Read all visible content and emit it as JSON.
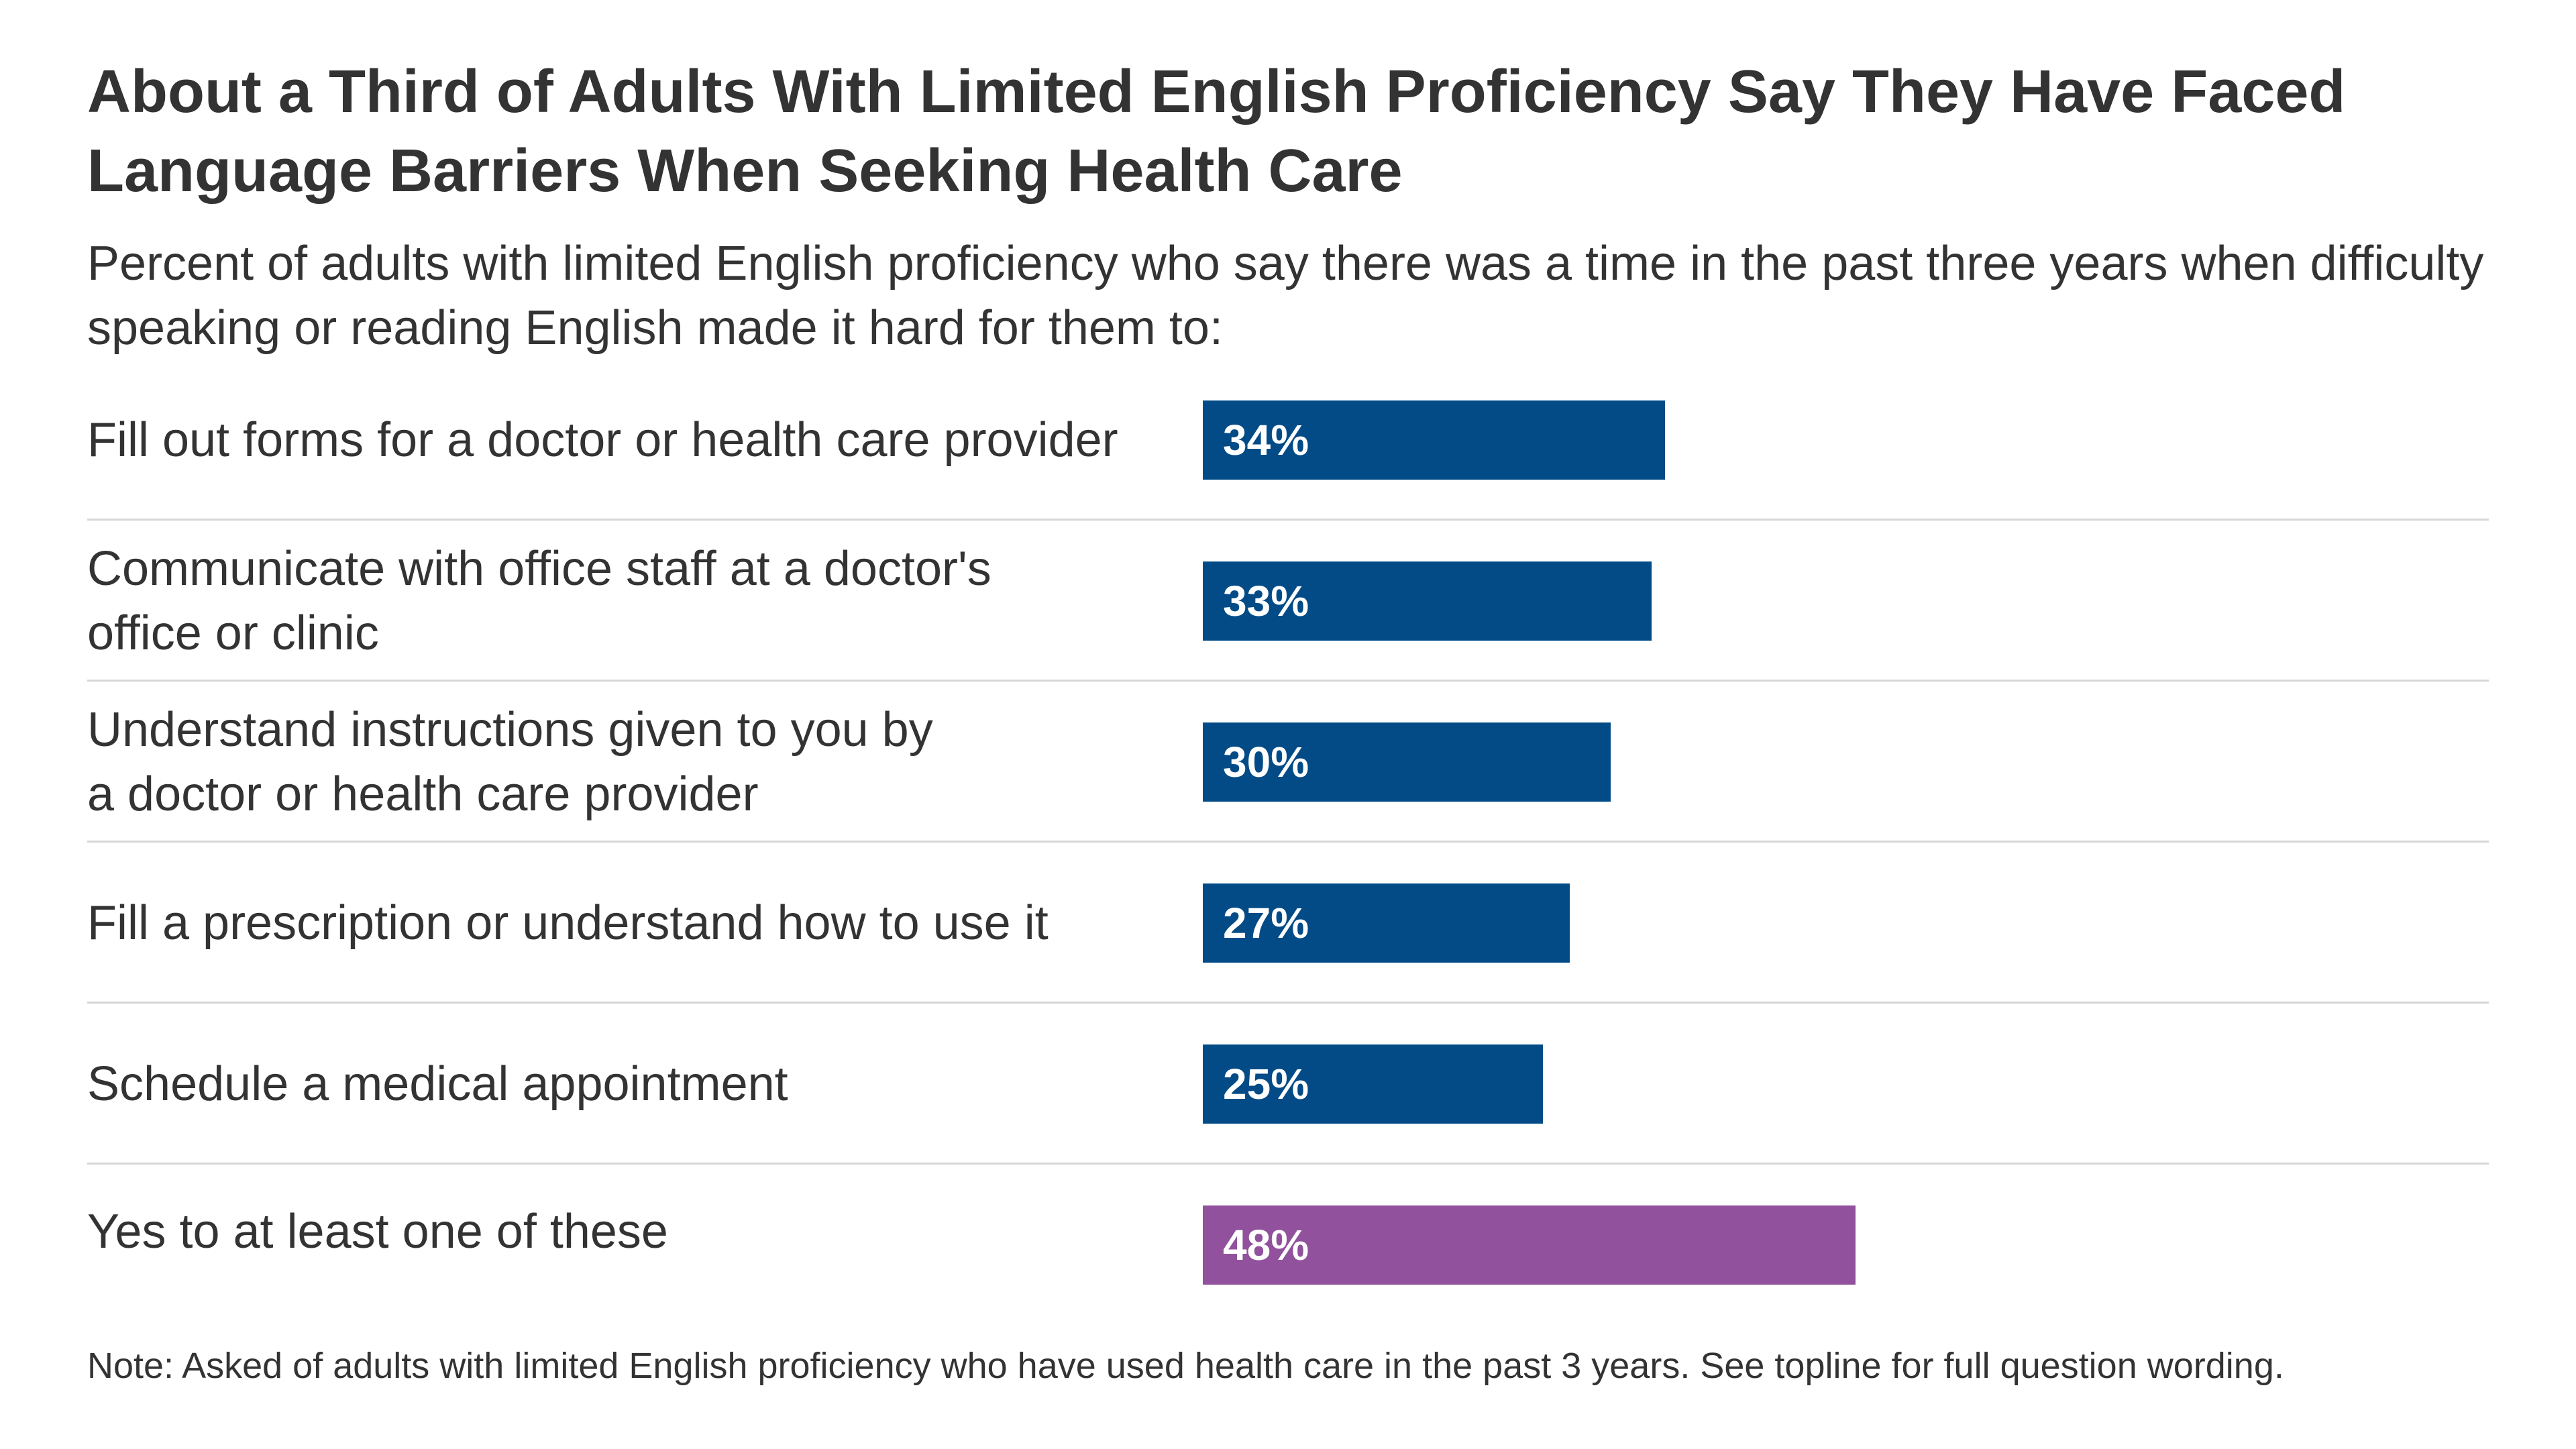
{
  "chart_data": {
    "type": "bar",
    "orientation": "horizontal",
    "title": "About a Third of Adults With Limited English Proficiency Say They Have Faced Language Barriers When Seeking Health Care",
    "subtitle": "Percent of adults with limited English proficiency who say there was a time in the past three years when difficulty speaking or reading English made it hard for them to:",
    "categories": [
      "Fill out forms for a doctor or health care provider",
      "Communicate with office staff at a doctor's office or clinic",
      "Understand instructions given to you by a doctor or health care provider",
      "Fill a prescription or understand how to use it",
      "Schedule a medical appointment",
      "Yes to at least one of these"
    ],
    "values": [
      34,
      33,
      30,
      27,
      25,
      48
    ],
    "data_labels": [
      "34%",
      "33%",
      "30%",
      "27%",
      "25%",
      "48%"
    ],
    "colors": [
      "#024b87",
      "#024b87",
      "#024b87",
      "#024b87",
      "#024b87",
      "#91519d"
    ],
    "xlim": [
      0,
      100
    ],
    "grid": false,
    "legend": "none",
    "note": "Note: Asked of adults with limited English proficiency who have used health care in the past 3 years. See topline for full question wording."
  }
}
